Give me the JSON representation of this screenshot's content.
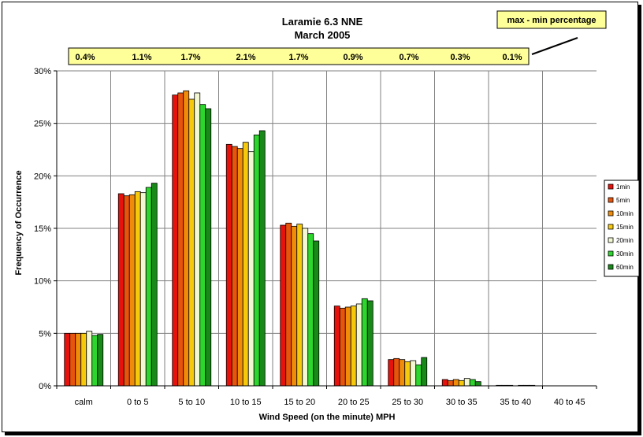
{
  "chart_data": {
    "type": "bar",
    "title": "Laramie 6.3 NNE",
    "subtitle": "March 2005",
    "xlabel": "Wind Speed (on the minute) MPH",
    "ylabel": "Frequency of Occurrence",
    "ylim": [
      0,
      30
    ],
    "y_ticks": [
      "0%",
      "5%",
      "10%",
      "15%",
      "20%",
      "25%",
      "30%"
    ],
    "y_tick_values": [
      0,
      5,
      10,
      15,
      20,
      25,
      30
    ],
    "grid": true,
    "legend_position": "right",
    "categories": [
      "calm",
      "0 to 5",
      "5 to 10",
      "10 to 15",
      "15 to 20",
      "20 to 25",
      "25 to 30",
      "30 to 35",
      "35 to 40",
      "40 to 45"
    ],
    "series": [
      {
        "name": "1min",
        "color": "#e8120c",
        "values": [
          5.0,
          18.3,
          27.7,
          23.0,
          15.3,
          7.6,
          2.5,
          0.6,
          0.05,
          0
        ]
      },
      {
        "name": "5min",
        "color": "#e8540c",
        "values": [
          5.0,
          18.1,
          27.9,
          22.8,
          15.5,
          7.4,
          2.6,
          0.5,
          0.05,
          0
        ]
      },
      {
        "name": "10min",
        "color": "#f08c0a",
        "values": [
          5.0,
          18.2,
          28.1,
          22.6,
          15.2,
          7.5,
          2.5,
          0.6,
          0.05,
          0
        ]
      },
      {
        "name": "15min",
        "color": "#f6c90c",
        "values": [
          5.0,
          18.5,
          27.3,
          23.2,
          15.4,
          7.6,
          2.3,
          0.5,
          0,
          0
        ]
      },
      {
        "name": "20min",
        "color": "#f4f8d2",
        "values": [
          5.2,
          18.4,
          27.9,
          22.3,
          15.0,
          7.8,
          2.4,
          0.7,
          0.05,
          0
        ]
      },
      {
        "name": "30min",
        "color": "#2cd62c",
        "values": [
          4.8,
          18.9,
          26.8,
          23.9,
          14.5,
          8.3,
          2.0,
          0.6,
          0.05,
          0
        ]
      },
      {
        "name": "60min",
        "color": "#178a17",
        "values": [
          4.9,
          19.3,
          26.4,
          24.3,
          13.8,
          8.1,
          2.7,
          0.4,
          0.05,
          0
        ]
      }
    ],
    "max_min_percentages": [
      "0.4%",
      "1.1%",
      "1.7%",
      "2.1%",
      "1.7%",
      "0.9%",
      "0.7%",
      "0.3%",
      "0.1%"
    ],
    "callout_label": "max - min percentage",
    "callout_color": "#ffff99"
  }
}
